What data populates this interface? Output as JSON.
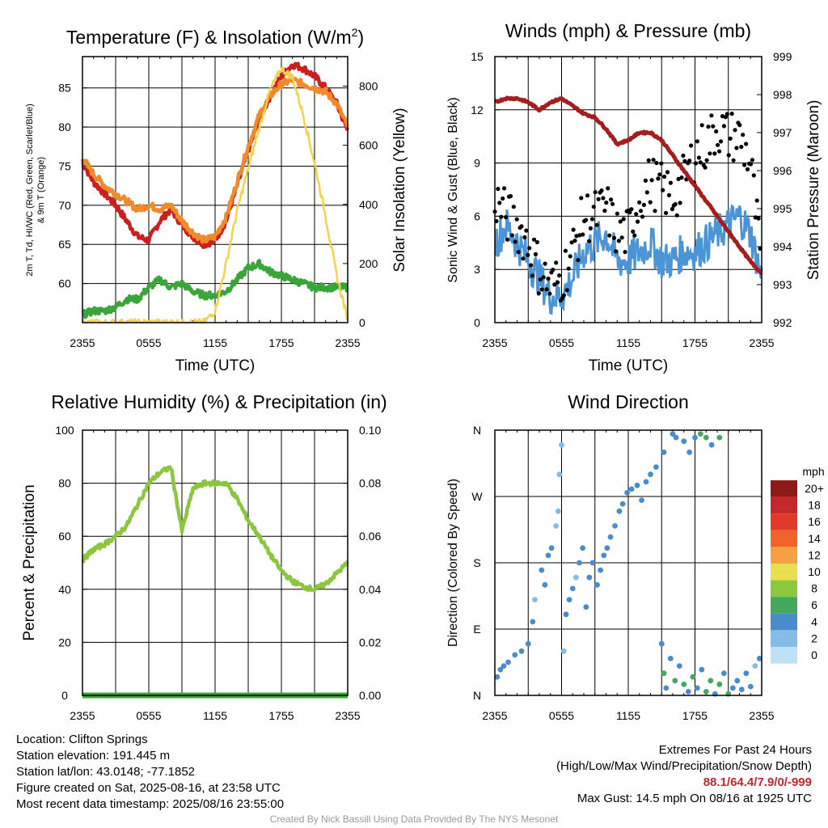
{
  "chart_data": [
    {
      "type": "line",
      "title": "Temperature (F) & Insolation (W/m²)",
      "title_main": "Temperature (F) & Insolation (W/m",
      "title_sup": "2",
      "title_close": ")",
      "xlabel": "Time (UTC)",
      "ylabel_left_line1": "2m T, Td, HI/WC (Red, Green, Scarlet/Blue)",
      "ylabel_left_line2": "& 9m T (Orange)",
      "ylabel_right": "Solar Insolation (Yellow)",
      "x_ticks": [
        "2355",
        "0555",
        "1155",
        "1755",
        "2355"
      ],
      "ylim_left": [
        55,
        89
      ],
      "ylim_right": [
        0,
        900
      ],
      "y_ticks_left": [
        60,
        65,
        70,
        75,
        80,
        85
      ],
      "y_ticks_right": [
        0,
        200,
        400,
        600,
        800
      ],
      "x_hours": [
        0,
        1,
        2,
        3,
        4,
        5,
        6,
        7,
        8,
        9,
        10,
        11,
        12,
        13,
        14,
        15,
        16,
        17,
        18,
        19,
        20,
        21,
        22,
        23,
        24
      ],
      "series": [
        {
          "axis": "left",
          "color": "#cc1f1f",
          "values": [
            75.5,
            73,
            71.5,
            70,
            68,
            66,
            65.5,
            68,
            69.5,
            67.5,
            66,
            65,
            65.5,
            68,
            72.5,
            77,
            81,
            84,
            86.5,
            88,
            87.5,
            86.5,
            85,
            83,
            79.5
          ]
        },
        {
          "axis": "left",
          "color": "#f08a2a",
          "values": [
            76,
            74,
            72.5,
            71.5,
            70.5,
            69.5,
            70,
            69.5,
            70,
            68,
            66.5,
            65.5,
            66,
            68.5,
            73,
            77.5,
            81.5,
            84,
            85.5,
            86,
            85.5,
            85,
            84.5,
            83,
            80
          ]
        },
        {
          "axis": "left",
          "color": "#3aa63a",
          "values": [
            56,
            56.5,
            56.5,
            57,
            58,
            58,
            59.5,
            60.5,
            59.5,
            60,
            59,
            58.5,
            58.5,
            59,
            60.5,
            62,
            62.5,
            61.5,
            61,
            60.5,
            60,
            59.5,
            59.5,
            59.5,
            59.5
          ]
        },
        {
          "axis": "right",
          "color": "#f2d44c",
          "values": [
            0,
            0,
            0,
            0,
            0,
            0,
            0,
            0,
            0,
            0,
            0,
            0,
            40,
            200,
            380,
            520,
            660,
            790,
            860,
            830,
            700,
            540,
            360,
            160,
            10
          ]
        }
      ]
    },
    {
      "type": "scatter",
      "title": "Winds (mph) & Pressure (mb)",
      "xlabel": "Time (UTC)",
      "ylabel_left": "Sonic Wind & Gust (Blue, Black)",
      "ylabel_right": "Station Pressure (Maroon)",
      "x_ticks": [
        "2355",
        "0555",
        "1155",
        "1755",
        "2355"
      ],
      "ylim_left": [
        0,
        15
      ],
      "ylim_right": [
        992,
        999
      ],
      "y_ticks_left": [
        0,
        3,
        6,
        9,
        12,
        15
      ],
      "y_ticks_right": [
        992,
        993,
        994,
        995,
        996,
        997,
        998,
        999
      ],
      "x_hours": [
        0,
        1,
        2,
        3,
        4,
        5,
        6,
        7,
        8,
        9,
        10,
        11,
        12,
        13,
        14,
        15,
        16,
        17,
        18,
        19,
        20,
        21,
        22,
        23,
        24
      ],
      "wind_mph": [
        4.5,
        5.5,
        4.5,
        3.5,
        2.5,
        1.5,
        1.5,
        2.5,
        4,
        4.5,
        5,
        3.5,
        3.5,
        4,
        4.5,
        3.5,
        3.5,
        4,
        4,
        4.5,
        5,
        5.5,
        6,
        5,
        2.5
      ],
      "gust_mph": [
        7,
        6,
        5.5,
        4.5,
        3,
        2,
        2.5,
        4,
        6,
        6,
        6.5,
        5,
        5,
        7,
        8,
        7.5,
        7,
        8,
        9.5,
        10,
        11,
        10.5,
        10.5,
        9,
        3
      ],
      "pressure_mb": [
        997.8,
        997.9,
        997.9,
        997.8,
        997.6,
        997.8,
        997.9,
        997.7,
        997.5,
        997.4,
        997.1,
        996.7,
        996.8,
        997.0,
        997.0,
        996.8,
        996.4,
        996.0,
        995.6,
        995.2,
        994.8,
        994.4,
        994.0,
        993.6,
        993.3
      ],
      "colors": {
        "wind": "#4b94d6",
        "gust": "#000000",
        "pressure": "#a51e1e"
      }
    },
    {
      "type": "line",
      "title": "Relative Humidity (%) & Precipitation (in)",
      "ylabel": "Percent & Precipitation",
      "x_ticks": [
        "2355",
        "0555",
        "1155",
        "1755",
        "2355"
      ],
      "ylim_left": [
        0,
        100
      ],
      "ylim_right": [
        0,
        0.1
      ],
      "y_ticks_left": [
        0,
        20,
        40,
        60,
        80,
        100
      ],
      "y_ticks_right": [
        "0.00",
        "0.02",
        "0.04",
        "0.06",
        "0.08",
        "0.10"
      ],
      "x_hours": [
        0,
        1,
        2,
        3,
        4,
        5,
        6,
        7,
        8,
        9,
        10,
        11,
        12,
        13,
        14,
        15,
        16,
        17,
        18,
        19,
        20,
        21,
        22,
        23,
        24
      ],
      "series": [
        {
          "axis": "left",
          "color": "#8cc63f",
          "values": [
            51,
            55,
            57,
            60,
            64,
            72,
            80,
            84,
            86,
            62,
            78,
            80,
            80,
            80,
            74,
            66,
            60,
            53,
            47,
            43,
            41,
            40,
            42,
            46,
            50
          ]
        },
        {
          "axis": "right",
          "color": "#3aa63a",
          "values": [
            0,
            0,
            0,
            0,
            0,
            0,
            0,
            0,
            0,
            0,
            0,
            0,
            0,
            0,
            0,
            0,
            0,
            0,
            0,
            0,
            0,
            0,
            0,
            0,
            0
          ]
        }
      ]
    },
    {
      "type": "scatter",
      "title": "Wind Direction",
      "ylabel": "Direction (Colored By Speed)",
      "x_ticks": [
        "2355",
        "0555",
        "1155",
        "1755",
        "2355"
      ],
      "y_ticks": [
        "N",
        "E",
        "S",
        "W",
        "N"
      ],
      "ylim": [
        0,
        360
      ],
      "colorbar_title": "mph",
      "colorbar_labels": [
        "20+",
        "18",
        "16",
        "14",
        "12",
        "10",
        "8",
        "6",
        "4",
        "2",
        "0"
      ],
      "colorbar_colors": [
        "#8e1a1a",
        "#c4282a",
        "#e23a2a",
        "#ef6428",
        "#f4a043",
        "#e9de4d",
        "#8dc63f",
        "#45a861",
        "#4a8cc9",
        "#86bde8",
        "#bfe1f5"
      ],
      "points": [
        [
          0.2,
          25,
          4
        ],
        [
          0.5,
          35,
          4
        ],
        [
          0.8,
          40,
          3
        ],
        [
          1.2,
          45,
          4
        ],
        [
          1.8,
          55,
          4
        ],
        [
          2.4,
          60,
          4
        ],
        [
          3.0,
          70,
          3
        ],
        [
          3.4,
          100,
          3
        ],
        [
          3.6,
          130,
          2
        ],
        [
          4.2,
          170,
          3
        ],
        [
          4.5,
          150,
          3
        ],
        [
          4.8,
          190,
          4
        ],
        [
          5.1,
          200,
          3
        ],
        [
          5.5,
          230,
          2
        ],
        [
          5.7,
          250,
          1
        ],
        [
          5.8,
          300,
          1
        ],
        [
          6.0,
          340,
          1
        ],
        [
          6.2,
          60,
          2
        ],
        [
          6.4,
          110,
          3
        ],
        [
          6.7,
          130,
          4
        ],
        [
          7.0,
          145,
          3
        ],
        [
          7.3,
          160,
          2
        ],
        [
          7.6,
          180,
          3
        ],
        [
          7.9,
          200,
          4
        ],
        [
          8.2,
          120,
          4
        ],
        [
          8.5,
          160,
          3
        ],
        [
          8.8,
          180,
          4
        ],
        [
          9.2,
          150,
          4
        ],
        [
          9.5,
          170,
          3
        ],
        [
          9.8,
          190,
          4
        ],
        [
          10.1,
          200,
          3
        ],
        [
          10.4,
          215,
          4
        ],
        [
          10.8,
          230,
          4
        ],
        [
          11.2,
          250,
          4
        ],
        [
          11.5,
          260,
          4
        ],
        [
          11.9,
          275,
          4
        ],
        [
          12.3,
          280,
          4
        ],
        [
          12.8,
          285,
          3
        ],
        [
          13.2,
          265,
          4
        ],
        [
          13.6,
          290,
          4
        ],
        [
          14.0,
          300,
          4
        ],
        [
          14.5,
          310,
          4
        ],
        [
          15.2,
          330,
          3
        ],
        [
          16.0,
          355,
          3
        ],
        [
          16.3,
          350,
          4
        ],
        [
          17.0,
          345,
          4
        ],
        [
          17.5,
          330,
          4
        ],
        [
          18.0,
          350,
          4
        ],
        [
          18.5,
          355,
          5
        ],
        [
          19.0,
          350,
          5
        ],
        [
          19.5,
          340,
          4
        ],
        [
          20.2,
          350,
          5
        ],
        [
          15.0,
          70,
          4
        ],
        [
          15.2,
          30,
          5
        ],
        [
          15.4,
          10,
          4
        ],
        [
          15.8,
          50,
          3
        ],
        [
          16.2,
          20,
          5
        ],
        [
          16.6,
          40,
          4
        ],
        [
          17.0,
          15,
          5
        ],
        [
          17.4,
          5,
          4
        ],
        [
          17.8,
          25,
          5
        ],
        [
          18.2,
          10,
          4
        ],
        [
          18.6,
          35,
          4
        ],
        [
          19.0,
          5,
          6
        ],
        [
          19.4,
          20,
          5
        ],
        [
          19.8,
          2,
          4
        ],
        [
          20.2,
          15,
          5
        ],
        [
          20.6,
          30,
          4
        ],
        [
          21.0,
          2,
          5
        ],
        [
          21.4,
          10,
          4
        ],
        [
          21.8,
          20,
          4
        ],
        [
          22.2,
          8,
          3
        ],
        [
          22.6,
          30,
          3
        ],
        [
          23.0,
          12,
          3
        ],
        [
          23.4,
          40,
          2
        ],
        [
          23.8,
          50,
          3
        ]
      ]
    }
  ],
  "info": {
    "location": "Location: Clifton Springs",
    "elevation": "Station elevation: 191.445 m",
    "latlon": "Station lat/lon: 43.0148; -77.1852",
    "created": "Figure created on Sat, 2025-08-16, at 23:58 UTC",
    "recent": "Most recent data timestamp: 2025/08/16 23:55:00"
  },
  "extremes": {
    "title": "Extremes For Past 24 Hours",
    "subtitle": "(High/Low/Max Wind/Precipitation/Snow Depth)",
    "values": "88.1/64.4/7.9/0/-999",
    "max_gust": "Max Gust: 14.5 mph On 08/16 at 1925 UTC"
  },
  "credit": "Created By Nick Bassill Using Data Provided By The NYS Mesonet"
}
